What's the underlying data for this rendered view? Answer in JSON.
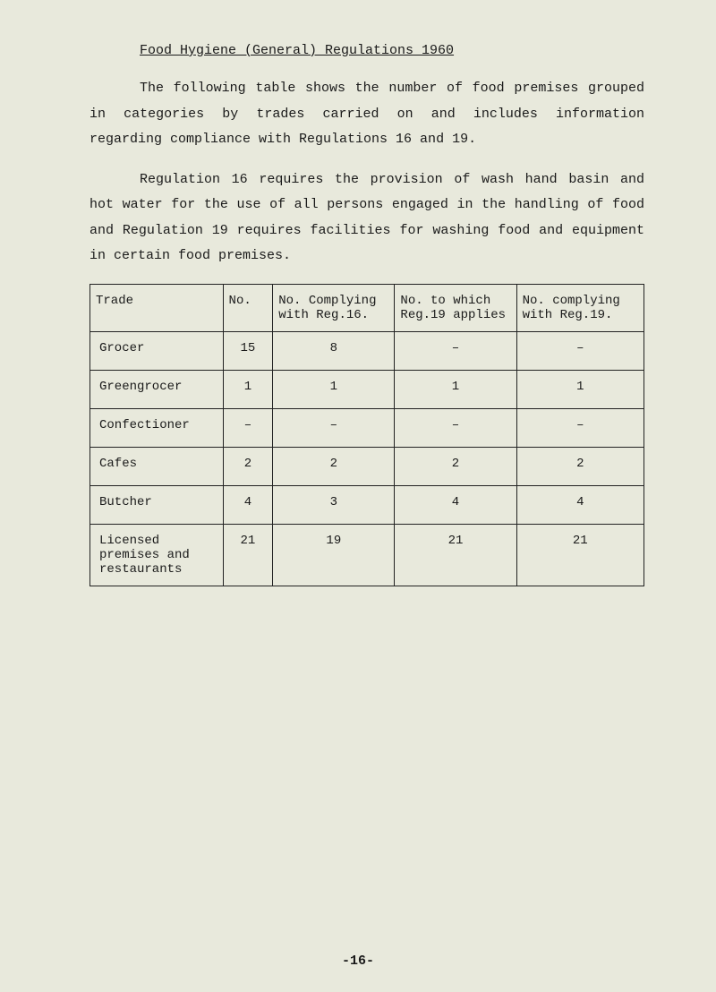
{
  "title": "Food Hygiene (General) Regulations 1960",
  "para1": "The following table shows the number of food premises grouped in categories by trades carried on and includes information regarding compliance with Regulations 16 and 19.",
  "para2": "Regulation 16 requires the provision of wash hand basin and hot water for the use of all persons engaged in the handling of food and Regulation 19 requires facilities for washing food and equipment in certain food premises.",
  "table": {
    "headers": {
      "trade": "Trade",
      "no": "No.",
      "comply16": "No. Complying with Reg.16.",
      "applies19": "No. to which Reg.19 applies",
      "comply19": "No. complying with Reg.19."
    },
    "rows": [
      {
        "trade": "Grocer",
        "no": "15",
        "c16": "8",
        "a19": "–",
        "c19": "–"
      },
      {
        "trade": "Greengrocer",
        "no": "1",
        "c16": "1",
        "a19": "1",
        "c19": "1"
      },
      {
        "trade": "Confectioner",
        "no": "–",
        "c16": "–",
        "a19": "–",
        "c19": "–"
      },
      {
        "trade": "Cafes",
        "no": "2",
        "c16": "2",
        "a19": "2",
        "c19": "2"
      },
      {
        "trade": "Butcher",
        "no": "4",
        "c16": "3",
        "a19": "4",
        "c19": "4"
      },
      {
        "trade": "Licensed premises and restaurants",
        "no": "21",
        "c16": "19",
        "a19": "21",
        "c19": "21"
      }
    ]
  },
  "pagenum": "-16-"
}
